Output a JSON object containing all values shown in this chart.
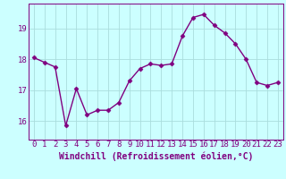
{
  "x": [
    0,
    1,
    2,
    3,
    4,
    5,
    6,
    7,
    8,
    9,
    10,
    11,
    12,
    13,
    14,
    15,
    16,
    17,
    18,
    19,
    20,
    21,
    22,
    23
  ],
  "y": [
    18.05,
    17.9,
    17.75,
    15.85,
    17.05,
    16.2,
    16.35,
    16.35,
    16.6,
    17.3,
    17.7,
    17.85,
    17.8,
    17.85,
    18.75,
    19.35,
    19.45,
    19.1,
    18.85,
    18.5,
    18.0,
    17.25,
    17.15,
    17.25
  ],
  "line_color": "#800080",
  "marker": "D",
  "markersize": 2.5,
  "linewidth": 1.0,
  "bg_color": "#ccffff",
  "grid_color": "#aadddd",
  "xlabel": "Windchill (Refroidissement éolien,°C)",
  "xlabel_fontsize": 7,
  "tick_color": "#800080",
  "tick_fontsize": 6.5,
  "yticks": [
    16,
    17,
    18,
    19
  ],
  "ylim": [
    15.4,
    19.8
  ],
  "xlim": [
    -0.5,
    23.5
  ],
  "xticks": [
    0,
    1,
    2,
    3,
    4,
    5,
    6,
    7,
    8,
    9,
    10,
    11,
    12,
    13,
    14,
    15,
    16,
    17,
    18,
    19,
    20,
    21,
    22,
    23
  ]
}
